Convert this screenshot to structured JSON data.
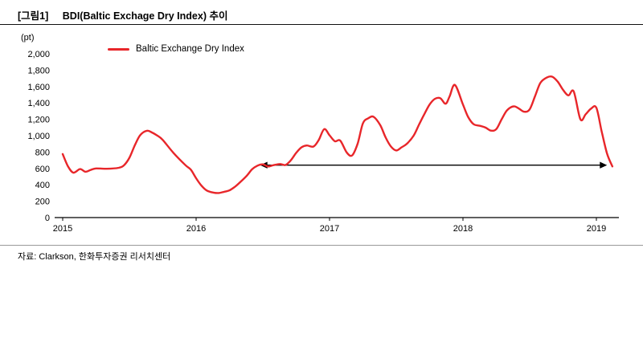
{
  "header": {
    "figure_label": "[그림1]",
    "title": "BDI(Baltic Exchage Dry Index) 추이"
  },
  "footer": {
    "source": "자료: Clarkson, 한화투자증권 리서치센터"
  },
  "colors": {
    "series_red": "#e8262a",
    "axis": "#000000"
  },
  "chart_data": {
    "type": "line",
    "title": "BDI(Baltic Exchage Dry Index) 추이",
    "unit": "(pt)",
    "xlabel": "",
    "ylabel": "(pt)",
    "grid": false,
    "legend_position": "top-left-inside",
    "xlim": [
      2015,
      2019.25
    ],
    "ylim": [
      0,
      2000
    ],
    "xticks": [
      {
        "v": 2015,
        "label": "2015"
      },
      {
        "v": 2016,
        "label": "2016"
      },
      {
        "v": 2017,
        "label": "2017"
      },
      {
        "v": 2018,
        "label": "2018"
      },
      {
        "v": 2019,
        "label": "2019"
      }
    ],
    "yticks": [
      {
        "v": 0,
        "label": "0"
      },
      {
        "v": 200,
        "label": "200"
      },
      {
        "v": 400,
        "label": "400"
      },
      {
        "v": 600,
        "label": "600"
      },
      {
        "v": 800,
        "label": "800"
      },
      {
        "v": 1000,
        "label": "1,000"
      },
      {
        "v": 1200,
        "label": "1,200"
      },
      {
        "v": 1400,
        "label": "1,400"
      },
      {
        "v": 1600,
        "label": "1,600"
      },
      {
        "v": 1800,
        "label": "1,800"
      },
      {
        "v": 2000,
        "label": "2,000"
      }
    ],
    "series": [
      {
        "name": "Baltic Exchange Dry Index",
        "color": "#e8262a",
        "points": [
          [
            2015.0,
            775
          ],
          [
            2015.04,
            625
          ],
          [
            2015.08,
            548
          ],
          [
            2015.13,
            592
          ],
          [
            2015.17,
            560
          ],
          [
            2015.21,
            582
          ],
          [
            2015.25,
            600
          ],
          [
            2015.33,
            596
          ],
          [
            2015.42,
            608
          ],
          [
            2015.46,
            640
          ],
          [
            2015.5,
            730
          ],
          [
            2015.54,
            880
          ],
          [
            2015.58,
            1005
          ],
          [
            2015.63,
            1060
          ],
          [
            2015.67,
            1038
          ],
          [
            2015.71,
            1000
          ],
          [
            2015.75,
            948
          ],
          [
            2015.83,
            790
          ],
          [
            2015.92,
            640
          ],
          [
            2015.96,
            585
          ],
          [
            2016.0,
            480
          ],
          [
            2016.04,
            390
          ],
          [
            2016.08,
            330
          ],
          [
            2016.13,
            305
          ],
          [
            2016.17,
            300
          ],
          [
            2016.21,
            315
          ],
          [
            2016.25,
            332
          ],
          [
            2016.29,
            375
          ],
          [
            2016.33,
            432
          ],
          [
            2016.38,
            512
          ],
          [
            2016.42,
            590
          ],
          [
            2016.46,
            634
          ],
          [
            2016.5,
            650
          ],
          [
            2016.54,
            624
          ],
          [
            2016.58,
            640
          ],
          [
            2016.63,
            654
          ],
          [
            2016.67,
            642
          ],
          [
            2016.71,
            700
          ],
          [
            2016.75,
            790
          ],
          [
            2016.79,
            858
          ],
          [
            2016.83,
            880
          ],
          [
            2016.88,
            868
          ],
          [
            2016.92,
            950
          ],
          [
            2016.96,
            1080
          ],
          [
            2017.0,
            1005
          ],
          [
            2017.04,
            932
          ],
          [
            2017.08,
            940
          ],
          [
            2017.13,
            792
          ],
          [
            2017.17,
            760
          ],
          [
            2017.21,
            900
          ],
          [
            2017.25,
            1150
          ],
          [
            2017.29,
            1212
          ],
          [
            2017.33,
            1230
          ],
          [
            2017.38,
            1128
          ],
          [
            2017.42,
            980
          ],
          [
            2017.46,
            868
          ],
          [
            2017.5,
            820
          ],
          [
            2017.54,
            858
          ],
          [
            2017.58,
            902
          ],
          [
            2017.63,
            1000
          ],
          [
            2017.67,
            1132
          ],
          [
            2017.71,
            1262
          ],
          [
            2017.75,
            1380
          ],
          [
            2017.79,
            1450
          ],
          [
            2017.83,
            1458
          ],
          [
            2017.87,
            1390
          ],
          [
            2017.9,
            1480
          ],
          [
            2017.94,
            1620
          ],
          [
            2018.0,
            1380
          ],
          [
            2018.04,
            1225
          ],
          [
            2018.08,
            1140
          ],
          [
            2018.13,
            1120
          ],
          [
            2018.17,
            1098
          ],
          [
            2018.21,
            1062
          ],
          [
            2018.25,
            1080
          ],
          [
            2018.29,
            1200
          ],
          [
            2018.33,
            1310
          ],
          [
            2018.38,
            1358
          ],
          [
            2018.42,
            1330
          ],
          [
            2018.46,
            1292
          ],
          [
            2018.5,
            1322
          ],
          [
            2018.54,
            1480
          ],
          [
            2018.58,
            1645
          ],
          [
            2018.63,
            1712
          ],
          [
            2018.67,
            1720
          ],
          [
            2018.71,
            1660
          ],
          [
            2018.75,
            1560
          ],
          [
            2018.79,
            1492
          ],
          [
            2018.83,
            1540
          ],
          [
            2018.88,
            1200
          ],
          [
            2018.92,
            1262
          ],
          [
            2018.96,
            1330
          ],
          [
            2019.0,
            1340
          ],
          [
            2019.04,
            1050
          ],
          [
            2019.08,
            780
          ],
          [
            2019.12,
            625
          ]
        ]
      }
    ],
    "annotation": {
      "type": "double_arrow",
      "x_start": 2016.48,
      "x_end": 2019.08,
      "y": 640,
      "color": "#000000"
    }
  }
}
